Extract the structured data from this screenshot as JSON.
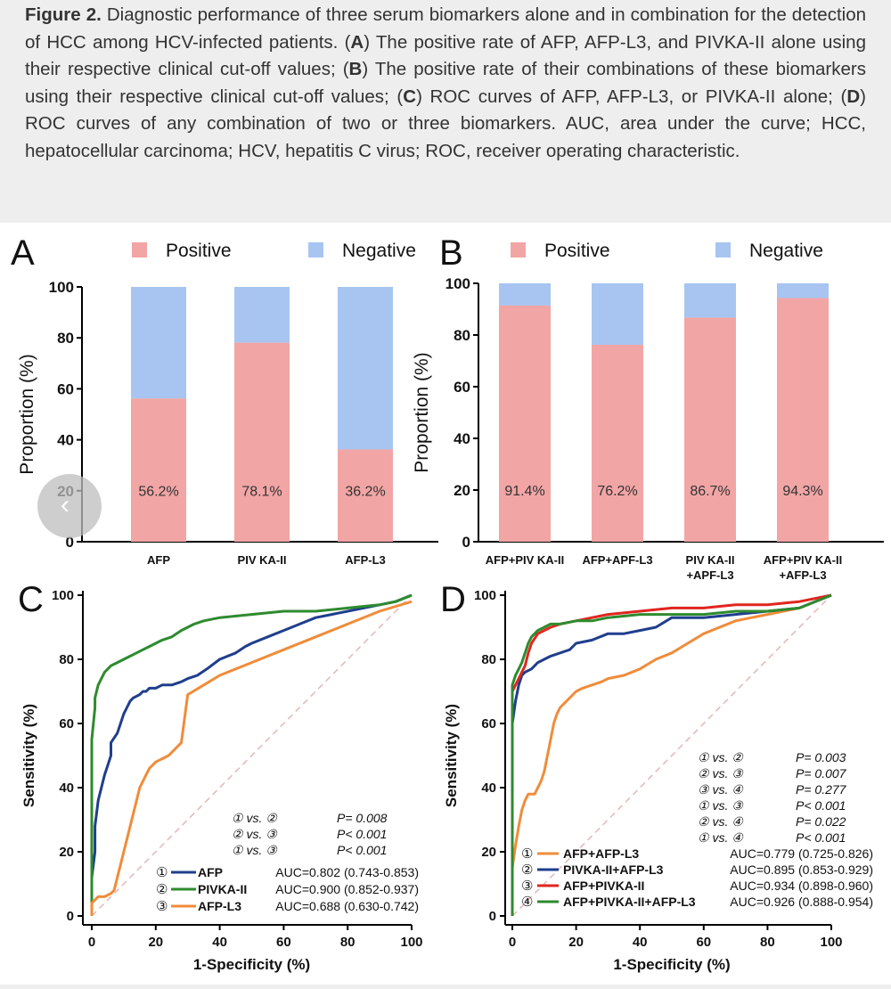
{
  "caption": {
    "label": "Figure 2.",
    "parts": [
      " Diagnostic performance of three serum biomarkers alone and in combination for the detection of HCC among HCV-infected patients. (",
      "A",
      ") The positive rate of AFP, AFP-L3, and PIVKA-II alone using their respective clinical cut-off values; (",
      "B",
      ") The positive rate of their combinations of these biomarkers using their respective clinical cut-off values; (",
      "C",
      ") ROC curves of AFP, AFP-L3, or PIVKA-II alone; (",
      "D",
      ") ROC curves of any combination of two or three biomarkers. AUC, area under the curve; HCC, hepatocellular carcinoma; HCV, hepatitis C virus; ROC, receiver operating characteristic."
    ]
  },
  "colors": {
    "positive": "#f2a5a5",
    "negative": "#a7c5f0",
    "afp": "#1f3e8c",
    "pivka": "#2e8b2e",
    "afpl3": "#f08c3a",
    "red": "#e0261f",
    "diag": "#e6b6b6"
  },
  "nav": {
    "prev_icon": "chevron-left-icon",
    "glyph": "‹"
  },
  "chart_data": [
    {
      "panel": "A",
      "type": "bar",
      "stacked": true,
      "legend": [
        "Positive",
        "Negative"
      ],
      "legend_position": "top",
      "ylabel": "Proportion (%)",
      "ylim": [
        0,
        100
      ],
      "yticks": [
        0,
        20,
        40,
        60,
        80,
        100
      ],
      "categories": [
        [
          "AFP"
        ],
        [
          "PIV KA-II"
        ],
        [
          "AFP-L3"
        ]
      ],
      "series": [
        {
          "name": "Positive",
          "values": [
            56.2,
            78.1,
            36.2
          ]
        },
        {
          "name": "Negative",
          "values": [
            43.8,
            21.9,
            63.8
          ]
        }
      ],
      "labels": [
        "56.2%",
        "78.1%",
        "36.2%"
      ]
    },
    {
      "panel": "B",
      "type": "bar",
      "stacked": true,
      "legend": [
        "Positive",
        "Negative"
      ],
      "legend_position": "top",
      "ylabel": "Proportion (%)",
      "ylim": [
        0,
        100
      ],
      "yticks": [
        0,
        20,
        40,
        60,
        80,
        100
      ],
      "categories": [
        [
          "AFP+PIV KA-II"
        ],
        [
          "AFP+APF-L3"
        ],
        [
          "PIV KA-II",
          "+APF-L3"
        ],
        [
          "AFP+PIV KA-II",
          "+AFP-L3"
        ]
      ],
      "series": [
        {
          "name": "Positive",
          "values": [
            91.4,
            76.2,
            86.7,
            94.3
          ]
        },
        {
          "name": "Negative",
          "values": [
            8.6,
            23.8,
            13.3,
            5.7
          ]
        }
      ],
      "labels": [
        "91.4%",
        "76.2%",
        "86.7%",
        "94.3%"
      ]
    },
    {
      "panel": "C",
      "type": "line",
      "xlabel": "1-Specificity (%)",
      "ylabel": "Sensitivity (%)",
      "xlim": [
        0,
        100
      ],
      "ylim": [
        0,
        100
      ],
      "xticks": [
        0,
        20,
        40,
        60,
        80,
        100
      ],
      "yticks": [
        0,
        20,
        40,
        60,
        80,
        100
      ],
      "series": [
        {
          "name": "AFP",
          "num": "①",
          "color": "#1f3e8c",
          "auc": "AUC=0.802 (0.743-0.853)",
          "x": [
            0,
            0,
            1,
            1,
            2,
            3,
            4,
            5,
            6,
            6,
            8,
            9,
            10,
            11,
            12,
            13,
            15,
            16,
            17,
            18,
            20,
            22,
            25,
            28,
            30,
            33,
            36,
            40,
            45,
            48,
            50,
            55,
            60,
            65,
            70,
            75,
            80,
            85,
            90,
            95,
            100
          ],
          "y": [
            0,
            12,
            20,
            28,
            36,
            40,
            44,
            47,
            50,
            54,
            57,
            60,
            63,
            65,
            67,
            68,
            69,
            70,
            70,
            71,
            71,
            72,
            72,
            73,
            74,
            75,
            77,
            80,
            82,
            84,
            85,
            87,
            89,
            91,
            93,
            94,
            95,
            96,
            97,
            98,
            100
          ]
        },
        {
          "name": "PIVKA-II",
          "num": "②",
          "color": "#2e8b2e",
          "auc": "AUC=0.900 (0.852-0.937)",
          "x": [
            0,
            0,
            0,
            1,
            1,
            2,
            3,
            4,
            5,
            6,
            8,
            10,
            12,
            14,
            16,
            18,
            20,
            22,
            25,
            28,
            32,
            35,
            40,
            50,
            60,
            70,
            80,
            90,
            95,
            100
          ],
          "y": [
            0,
            30,
            55,
            65,
            68,
            72,
            74,
            76,
            77,
            78,
            79,
            80,
            81,
            82,
            83,
            84,
            85,
            86,
            87,
            89,
            91,
            92,
            93,
            94,
            95,
            95,
            96,
            97,
            98,
            100
          ]
        },
        {
          "name": "AFP-L3",
          "num": "③",
          "color": "#f08c3a",
          "auc": "AUC=0.688 (0.630-0.742)",
          "x": [
            0,
            0,
            2,
            4,
            6,
            7,
            8,
            9,
            10,
            11,
            12,
            13,
            14,
            15,
            16,
            17,
            18,
            19,
            20,
            22,
            24,
            26,
            28,
            30,
            35,
            40,
            50,
            60,
            70,
            80,
            90,
            100
          ],
          "y": [
            0,
            4,
            6,
            6,
            7,
            8,
            12,
            16,
            20,
            24,
            28,
            32,
            36,
            40,
            42,
            44,
            46,
            47,
            48,
            49,
            50,
            52,
            54,
            69,
            72,
            75,
            79,
            83,
            87,
            91,
            95,
            98
          ]
        }
      ],
      "comparisons": [
        {
          "pair": "① vs. ②",
          "p": "P= 0.008"
        },
        {
          "pair": "② vs. ③",
          "p": "P< 0.001"
        },
        {
          "pair": "① vs. ③",
          "p": "P< 0.001"
        }
      ]
    },
    {
      "panel": "D",
      "type": "line",
      "xlabel": "1-Specificity (%)",
      "ylabel": "Sensitivity (%)",
      "xlim": [
        0,
        100
      ],
      "ylim": [
        0,
        100
      ],
      "xticks": [
        0,
        20,
        40,
        60,
        80,
        100
      ],
      "yticks": [
        0,
        20,
        40,
        60,
        80,
        100
      ],
      "series": [
        {
          "name": "AFP+AFP-L3",
          "num": "①",
          "color": "#f08c3a",
          "auc": "AUC=0.779 (0.725-0.826)",
          "x": [
            0,
            0,
            1,
            2,
            3,
            4,
            5,
            6,
            7,
            8,
            9,
            10,
            11,
            12,
            13,
            14,
            15,
            17,
            20,
            22,
            25,
            28,
            30,
            35,
            40,
            45,
            50,
            55,
            60,
            65,
            70,
            75,
            80,
            90,
            100
          ],
          "y": [
            0,
            15,
            22,
            28,
            33,
            36,
            38,
            38,
            38,
            40,
            42,
            45,
            50,
            55,
            60,
            63,
            65,
            67,
            70,
            71,
            72,
            73,
            74,
            75,
            77,
            80,
            82,
            85,
            88,
            90,
            92,
            93,
            94,
            96,
            100
          ]
        },
        {
          "name": "PIVKA-II+AFP-L3",
          "num": "②",
          "color": "#1f3e8c",
          "auc": "AUC=0.895 (0.853-0.929)",
          "x": [
            0,
            0,
            1,
            2,
            3,
            4,
            6,
            8,
            10,
            12,
            15,
            18,
            20,
            25,
            30,
            35,
            40,
            45,
            50,
            55,
            60,
            70,
            80,
            90,
            100
          ],
          "y": [
            0,
            60,
            67,
            72,
            75,
            76,
            77,
            79,
            80,
            81,
            82,
            83,
            85,
            86,
            88,
            88,
            89,
            90,
            93,
            93,
            93,
            94,
            95,
            96,
            100
          ]
        },
        {
          "name": "AFP+PIVKA-II",
          "num": "③",
          "color": "#e0261f",
          "auc": "AUC=0.934 (0.898-0.960)",
          "x": [
            0,
            0,
            1,
            2,
            3,
            4,
            5,
            6,
            8,
            10,
            12,
            15,
            20,
            25,
            30,
            40,
            50,
            60,
            70,
            80,
            90,
            100
          ],
          "y": [
            0,
            70,
            72,
            74,
            76,
            78,
            82,
            85,
            88,
            89,
            90,
            91,
            92,
            93,
            94,
            95,
            96,
            96,
            97,
            97,
            98,
            100
          ]
        },
        {
          "name": "AFP+PIVKA-II+AFP-L3",
          "num": "④",
          "color": "#2e8b2e",
          "auc": "AUC=0.926 (0.888-0.954)",
          "x": [
            0,
            0,
            1,
            2,
            3,
            4,
            5,
            6,
            8,
            10,
            12,
            15,
            20,
            25,
            30,
            40,
            50,
            60,
            70,
            80,
            90,
            100
          ],
          "y": [
            0,
            72,
            75,
            77,
            79,
            82,
            85,
            87,
            89,
            90,
            91,
            91,
            92,
            92,
            93,
            94,
            94,
            94,
            95,
            95,
            96,
            100
          ]
        }
      ],
      "comparisons": [
        {
          "pair": "① vs. ②",
          "p": "P= 0.003"
        },
        {
          "pair": "② vs. ③",
          "p": "P= 0.007"
        },
        {
          "pair": "③ vs. ④",
          "p": "P= 0.277"
        },
        {
          "pair": "① vs. ③",
          "p": "P< 0.001"
        },
        {
          "pair": "② vs. ④",
          "p": "P= 0.022"
        },
        {
          "pair": "① vs. ④",
          "p": "P< 0.001"
        }
      ]
    }
  ]
}
